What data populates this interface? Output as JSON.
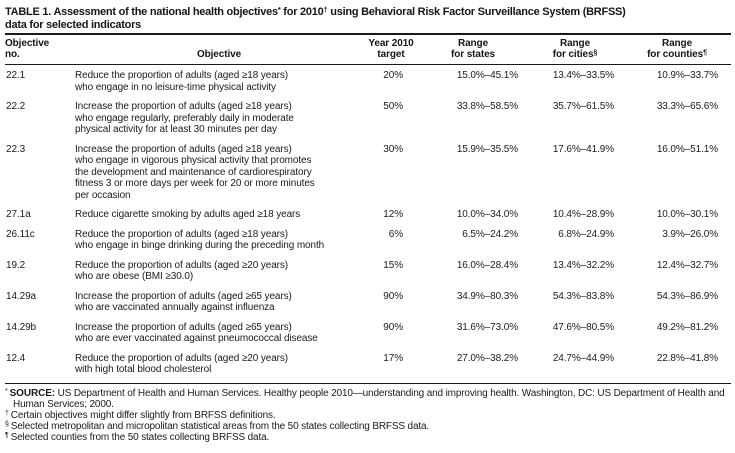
{
  "title": {
    "part1": "TABLE 1. Assessment of the national health objectives",
    "sup1": "*",
    "part2": " for 2010",
    "sup2": "†",
    "part3": " using Behavioral Risk Factor Surveillance System (BRFSS)",
    "line2": "data for selected indicators"
  },
  "table": {
    "headers": {
      "col1_line1": "Objective",
      "col1_line2": "no.",
      "col2": "Objective",
      "col3_line1": "Year 2010",
      "col3_line2": "target",
      "col4_line1": "Range",
      "col4_line2": "for states",
      "col5_line1": "Range",
      "col5_line2": "for cities",
      "col5_sup": "§",
      "col6_line1": "Range",
      "col6_line2": "for counties",
      "col6_sup": "¶"
    },
    "rows": [
      {
        "no": "22.1",
        "objective": "Reduce the proportion of adults (aged ≥18 years)\nwho engage in no leisure-time physical activity",
        "target": "20%",
        "states": "15.0%–45.1%",
        "cities": "13.4%–33.5%",
        "counties": "10.9%–33.7%"
      },
      {
        "no": "22.2",
        "objective": "Increase the proportion of adults (aged ≥18 years)\nwho engage regularly, preferably daily in moderate\nphysical activity for at least 30 minutes per day",
        "target": "50%",
        "states": "33.8%–58.5%",
        "cities": "35.7%–61.5%",
        "counties": "33.3%–65.6%"
      },
      {
        "no": "22.3",
        "objective": "Increase the proportion of adults (aged ≥18 years)\nwho engage in vigorous physical activity that promotes\nthe development and maintenance of cardiorespiratory\nfitness 3 or more days per week for 20 or more minutes\nper occasion",
        "target": "30%",
        "states": "15.9%–35.5%",
        "cities": "17.6%–41.9%",
        "counties": "16.0%–51.1%"
      },
      {
        "no": "27.1a",
        "objective": "Reduce cigarette smoking by adults aged ≥18 years",
        "target": "12%",
        "states": "10.0%–34.0%",
        "cities": "10.4%–28.9%",
        "counties": "10.0%–30.1%"
      },
      {
        "no": "26.11c",
        "objective": "Reduce the proportion of adults (aged ≥18 years)\nwho engage in binge drinking during the preceding month",
        "target": "6%",
        "states": "6.5%–24.2%",
        "cities": "6.8%–24.9%",
        "counties": "3.9%–26.0%"
      },
      {
        "no": "19.2",
        "objective": "Reduce the proportion of adults (aged ≥20 years)\nwho are obese (BMI ≥30.0)",
        "target": "15%",
        "states": "16.0%–28.4%",
        "cities": "13.4%–32.2%",
        "counties": "12.4%–32.7%"
      },
      {
        "no": "14.29a",
        "objective": "Increase the proportion of adults (aged ≥65 years)\nwho are vaccinated annually against influenza",
        "target": "90%",
        "states": "34.9%–80.3%",
        "cities": "54.3%–83.8%",
        "counties": "54.3%–86.9%"
      },
      {
        "no": "14.29b",
        "objective": "Increase the proportion of adults (aged ≥65 years)\nwho are ever vaccinated against pneumococcal disease",
        "target": "90%",
        "states": "31.6%–73.0%",
        "cities": "47.6%–80.5%",
        "counties": "49.2%–81.2%"
      },
      {
        "no": "12.4",
        "objective": "Reduce the proportion of adults (aged ≥20 years)\nwith high total blood cholesterol",
        "target": "17%",
        "states": "27.0%–38.2%",
        "cities": "24.7%–44.9%",
        "counties": "22.8%–41.8%"
      }
    ]
  },
  "footnotes": [
    {
      "sym": "*",
      "bold": "SOURCE:",
      "text": " US Department of Health and Human Services. Healthy people 2010—understanding and improving health. Washington, DC: US Department of Health and Human Services; 2000."
    },
    {
      "sym": "†",
      "text": "Certain objectives might differ slightly from BRFSS definitions."
    },
    {
      "sym": "§",
      "text": "Selected metropolitan and micropolitan statistical areas from the 50 states collecting BRFSS data."
    },
    {
      "sym": "¶",
      "text": "Selected counties from the 50 states collecting BRFSS data."
    }
  ]
}
